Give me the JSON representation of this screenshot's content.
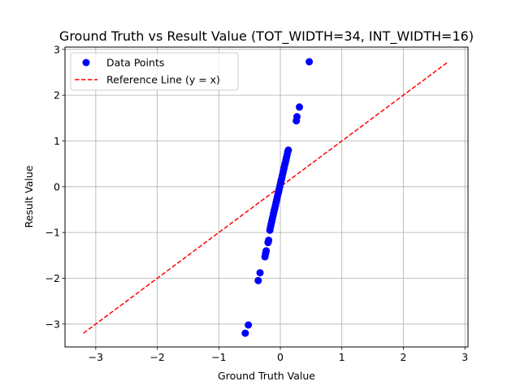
{
  "chart_data": {
    "type": "scatter",
    "title": "Ground Truth vs Result Value (TOT_WIDTH=34, INT_WIDTH=16)",
    "xlabel": "Ground Truth Value",
    "ylabel": "Result Value",
    "xlim": [
      -3.5,
      3.05
    ],
    "ylim": [
      -3.5,
      3.05
    ],
    "xticks": [
      -3,
      -2,
      -1,
      0,
      1,
      2,
      3
    ],
    "yticks": [
      -3,
      -2,
      -1,
      0,
      1,
      2,
      3
    ],
    "xtick_labels": [
      "−3",
      "−2",
      "−1",
      "0",
      "1",
      "2",
      "3"
    ],
    "ytick_labels": [
      "−3",
      "−2",
      "−1",
      "0",
      "1",
      "2",
      "3"
    ],
    "grid": true,
    "legend_position": "top-left",
    "series": [
      {
        "name": "Data Points",
        "kind": "scatter",
        "color": "#0000ff",
        "points": [
          [
            0.47,
            2.73
          ],
          [
            0.31,
            1.74
          ],
          [
            0.27,
            1.53
          ],
          [
            0.26,
            1.44
          ],
          [
            -0.57,
            -3.2
          ],
          [
            -0.52,
            -3.02
          ],
          [
            -0.36,
            -2.05
          ],
          [
            -0.33,
            -1.88
          ],
          [
            -0.25,
            -1.53
          ],
          [
            -0.24,
            -1.46
          ],
          [
            -0.23,
            -1.4
          ],
          [
            -0.2,
            -1.22
          ],
          [
            -0.19,
            -1.17
          ],
          [
            -0.17,
            -0.95
          ],
          [
            -0.16,
            -0.88
          ],
          [
            -0.15,
            -0.82
          ],
          [
            -0.14,
            -0.76
          ],
          [
            -0.13,
            -0.7
          ],
          [
            -0.12,
            -0.64
          ],
          [
            -0.11,
            -0.58
          ],
          [
            -0.1,
            -0.52
          ],
          [
            -0.09,
            -0.47
          ],
          [
            -0.08,
            -0.41
          ],
          [
            -0.07,
            -0.35
          ],
          [
            -0.06,
            -0.29
          ],
          [
            -0.05,
            -0.23
          ],
          [
            -0.04,
            -0.17
          ],
          [
            -0.03,
            -0.12
          ],
          [
            -0.02,
            -0.06
          ],
          [
            -0.01,
            0.0
          ],
          [
            0.0,
            0.06
          ],
          [
            0.01,
            0.12
          ],
          [
            0.02,
            0.17
          ],
          [
            0.03,
            0.23
          ],
          [
            0.04,
            0.29
          ],
          [
            0.05,
            0.35
          ],
          [
            0.06,
            0.41
          ],
          [
            0.07,
            0.47
          ],
          [
            0.08,
            0.52
          ],
          [
            0.09,
            0.58
          ],
          [
            0.1,
            0.64
          ],
          [
            0.11,
            0.7
          ],
          [
            0.12,
            0.76
          ],
          [
            0.13,
            0.8
          ]
        ]
      },
      {
        "name": "Reference Line (y = x)",
        "kind": "line",
        "style": "dashed",
        "color": "#ff0000",
        "points": [
          [
            -3.2,
            -3.2
          ],
          [
            2.73,
            2.73
          ]
        ]
      }
    ]
  }
}
